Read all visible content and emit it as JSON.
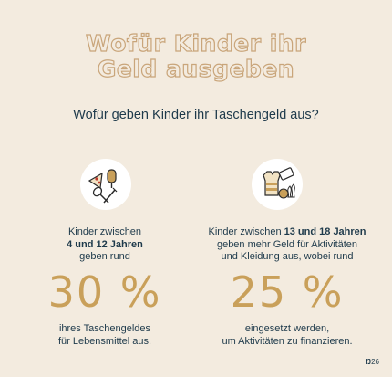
{
  "title_line1": "Wofür Kinder ihr",
  "title_line2": "Geld ausgeben",
  "subtitle": "Wofür geben Kinder ihr Taschengeld aus?",
  "left": {
    "line1": "Kinder zwischen",
    "line2_bold": "4 und 12 Jahren",
    "line3": "geben rund",
    "percent": "30 %",
    "after1": "ihres Taschengeldes",
    "after2": "für Lebensmittel aus.",
    "icon": "food-icon"
  },
  "right": {
    "line1_start": "Kinder zwischen ",
    "line1_bold": "13 und 18 Jahren",
    "line2": "geben mehr Geld für Aktivitäten",
    "line3": "und Kleidung aus, wobei rund",
    "percent": "25 %",
    "after1": "eingesetzt werden,",
    "after2": "um Aktivitäten zu finanzieren.",
    "icon": "activities-icon"
  },
  "page_number": "26",
  "colors": {
    "background": "#f3ebdf",
    "gold": "#c9a05a",
    "navy": "#1e3a4b"
  }
}
